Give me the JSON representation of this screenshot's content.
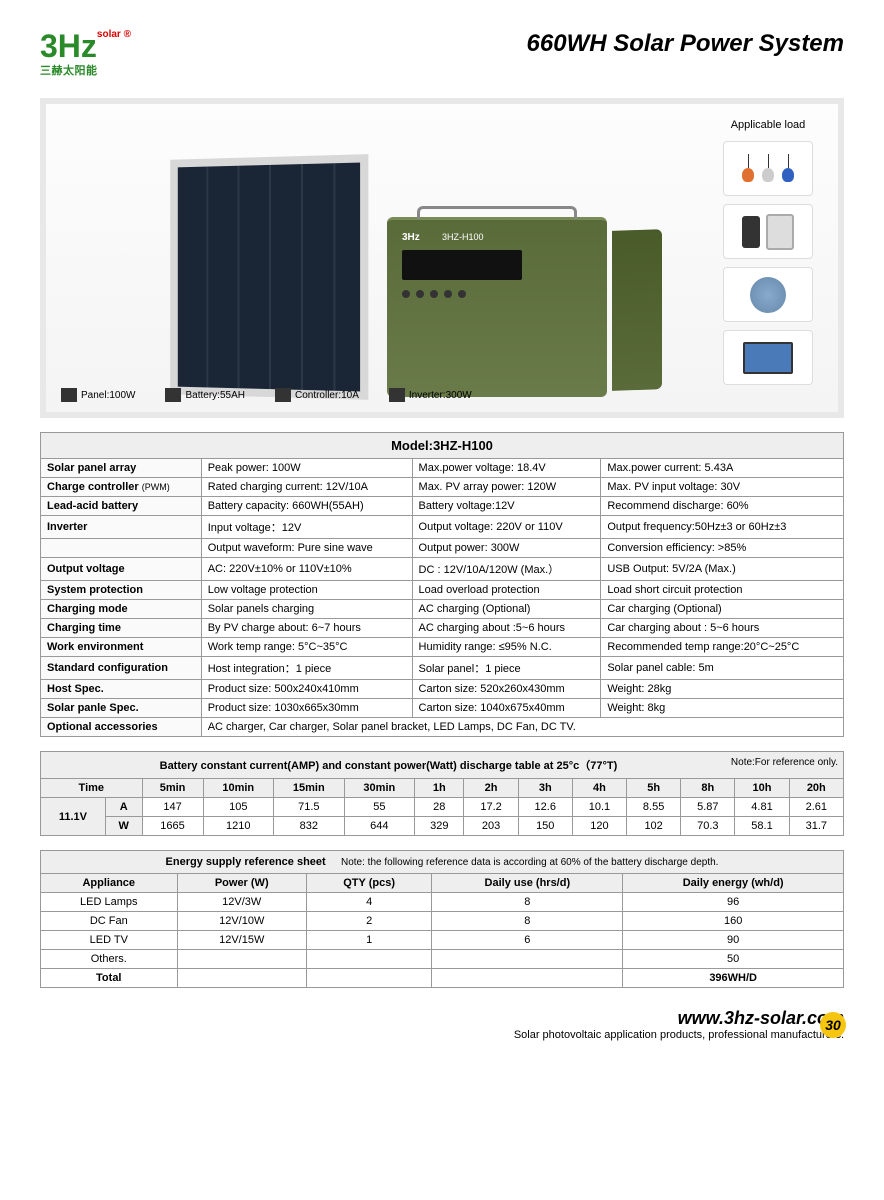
{
  "brand": {
    "name": "3Hz",
    "sup": "solar ®",
    "cn": "三赫太阳能"
  },
  "title": "660WH Solar Power System",
  "hero": {
    "unit_brand": "3Hz",
    "unit_model": "3HZ-H100",
    "specs": [
      {
        "label": "Panel:100W"
      },
      {
        "label": "Battery:55AH"
      },
      {
        "label": "Controller:10A"
      },
      {
        "label": "Inverter:300W"
      }
    ],
    "load_title": "Applicable load",
    "bulb_colors": [
      "#e07030",
      "#cccccc",
      "#3060c0"
    ]
  },
  "model_header": "Model:3HZ-H100",
  "spec_rows": [
    {
      "k": "Solar panel array",
      "c1": "Peak power: 100W",
      "c2": "Max.power voltage: 18.4V",
      "c3": "Max.power current: 5.43A"
    },
    {
      "k": "Charge controller",
      "ksub": "(PWM)",
      "c1": "Rated charging current: 12V/10A",
      "c2": "Max. PV array power: 120W",
      "c3": "Max. PV input voltage: 30V"
    },
    {
      "k": "Lead-acid battery",
      "c1": "Battery capacity: 660WH(55AH)",
      "c2": "Battery voltage:12V",
      "c3": "Recommend discharge: 60%"
    },
    {
      "k": "Inverter",
      "c1": "Input voltage：12V",
      "c2": "Output voltage: 220V or 110V",
      "c3": "Output frequency:50Hz±3 or 60Hz±3"
    },
    {
      "k": "",
      "c1": "Output waveform: Pure sine wave",
      "c2": "Output power:  300W",
      "c3": "Conversion efficiency:  >85%"
    },
    {
      "k": "Output voltage",
      "c1": "AC: 220V±10%  or 110V±10%",
      "c2": "DC : 12V/10A/120W (Max.）",
      "c3": "USB Output: 5V/2A (Max.)"
    },
    {
      "k": "System protection",
      "c1": "Low voltage protection",
      "c2": "Load overload protection",
      "c3": "Load short circuit protection"
    },
    {
      "k": "Charging mode",
      "c1": "Solar panels charging",
      "c2": "AC charging (Optional)",
      "c3": "Car charging (Optional)"
    },
    {
      "k": "Charging time",
      "c1": "By PV charge about: 6~7 hours",
      "c2": "AC charging about :5~6 hours",
      "c3": "Car charging about : 5~6 hours"
    },
    {
      "k": "Work environment",
      "c1": "Work temp range: 5°C~35°C",
      "c2": "Humidity range: ≤95% N.C.",
      "c3": "Recommended temp range:20°C~25°C"
    },
    {
      "k": "Standard configuration",
      "c1": "Host integration：1 piece",
      "c2": "Solar panel：1 piece",
      "c3": "Solar panel cable: 5m"
    },
    {
      "k": "Host Spec.",
      "c1": "Product size: 500x240x410mm",
      "c2": "Carton size: 520x260x430mm",
      "c3": "Weight: 28kg"
    },
    {
      "k": "Solar panle Spec.",
      "c1": "Product size: 1030x665x30mm",
      "c2": "Carton size: 1040x675x40mm",
      "c3": "Weight: 8kg"
    },
    {
      "k": "Optional accessories",
      "span": "AC charger, Car charger, Solar panel bracket,  LED Lamps, DC Fan, DC TV."
    }
  ],
  "discharge": {
    "title": "Battery constant current(AMP) and constant power(Watt) discharge table at 25°c（77°T)",
    "note": "Note:For reference only.",
    "time_label": "Time",
    "voltage": "11.1V",
    "headers": [
      "5min",
      "10min",
      "15min",
      "30min",
      "1h",
      "2h",
      "3h",
      "4h",
      "5h",
      "8h",
      "10h",
      "20h"
    ],
    "rows": [
      {
        "label": "A",
        "vals": [
          "147",
          "105",
          "71.5",
          "55",
          "28",
          "17.2",
          "12.6",
          "10.1",
          "8.55",
          "5.87",
          "4.81",
          "2.61"
        ]
      },
      {
        "label": "W",
        "vals": [
          "1665",
          "1210",
          "832",
          "644",
          "329",
          "203",
          "150",
          "120",
          "102",
          "70.3",
          "58.1",
          "31.7"
        ]
      }
    ]
  },
  "energy": {
    "title": "Energy supply reference sheet",
    "note": "Note: the following reference data is according at 60% of the battery discharge depth.",
    "headers": [
      "Appliance",
      "Power (W)",
      "QTY (pcs)",
      "Daily use (hrs/d)",
      "Daily energy (wh/d)"
    ],
    "rows": [
      [
        "LED Lamps",
        "12V/3W",
        "4",
        "8",
        "96"
      ],
      [
        "DC Fan",
        "12V/10W",
        "2",
        "8",
        "160"
      ],
      [
        "LED TV",
        "12V/15W",
        "1",
        "6",
        "90"
      ],
      [
        "Others.",
        "",
        "",
        "",
        "50"
      ]
    ],
    "total_label": "Total",
    "total_value": "396WH/D"
  },
  "footer": {
    "url": "www.3hz-solar.com",
    "tag": "Solar photovoltaic application products, professional manufacturers.",
    "page": "30"
  }
}
